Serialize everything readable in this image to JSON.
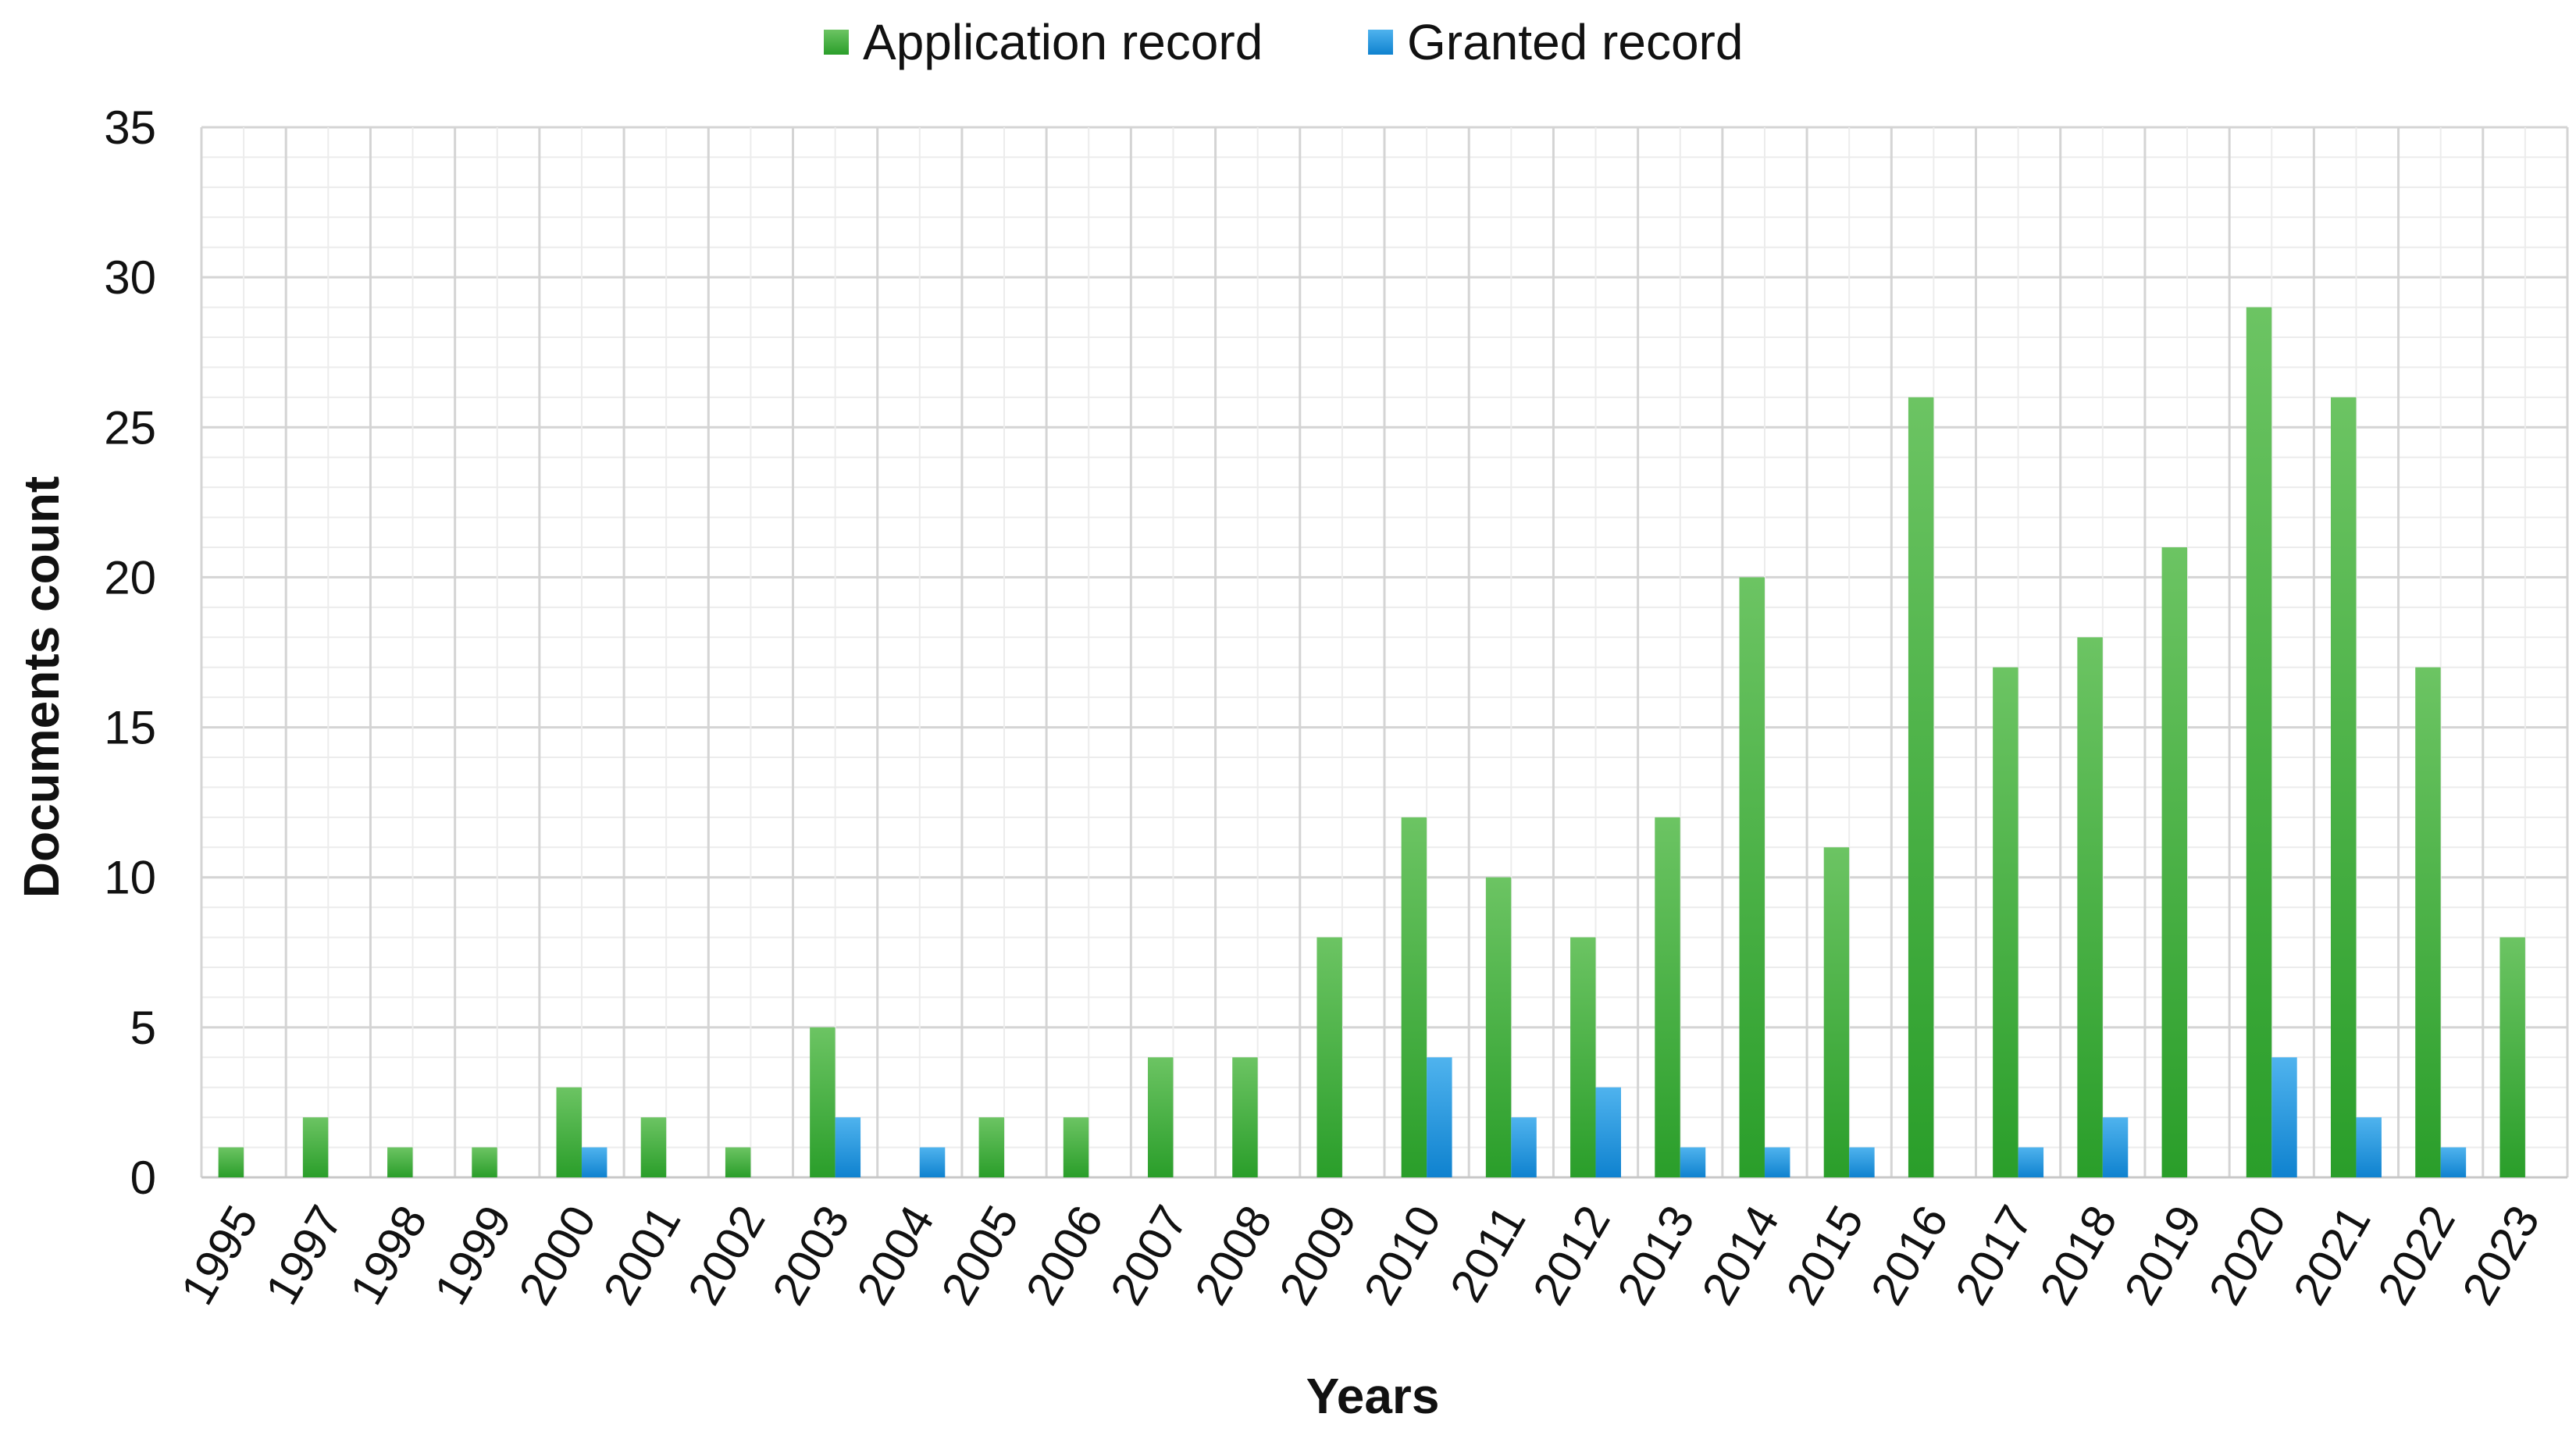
{
  "chart_data": {
    "type": "bar",
    "title": "",
    "xlabel": "Years",
    "ylabel": "Documents count",
    "ylim": [
      0,
      35
    ],
    "yticks": [
      0,
      5,
      10,
      15,
      20,
      25,
      30,
      35
    ],
    "grid": true,
    "legend_position": "top-center",
    "categories": [
      "1995",
      "1997",
      "1998",
      "1999",
      "2000",
      "2001",
      "2002",
      "2003",
      "2004",
      "2005",
      "2006",
      "2007",
      "2008",
      "2009",
      "2010",
      "2011",
      "2012",
      "2013",
      "2014",
      "2015",
      "2016",
      "2017",
      "2018",
      "2019",
      "2020",
      "2021",
      "2022",
      "2023"
    ],
    "series": [
      {
        "name": "Application record",
        "color": "#3aaa35",
        "values": [
          1,
          2,
          1,
          1,
          3,
          2,
          1,
          5,
          0,
          2,
          2,
          4,
          4,
          8,
          12,
          10,
          8,
          12,
          20,
          11,
          26,
          17,
          18,
          21,
          29,
          26,
          17,
          8
        ]
      },
      {
        "name": "Granted record",
        "color": "#1a8fd8",
        "values": [
          0,
          0,
          0,
          0,
          1,
          0,
          0,
          2,
          1,
          0,
          0,
          0,
          0,
          0,
          4,
          2,
          3,
          1,
          1,
          1,
          0,
          1,
          2,
          0,
          4,
          2,
          1,
          0
        ]
      }
    ]
  }
}
